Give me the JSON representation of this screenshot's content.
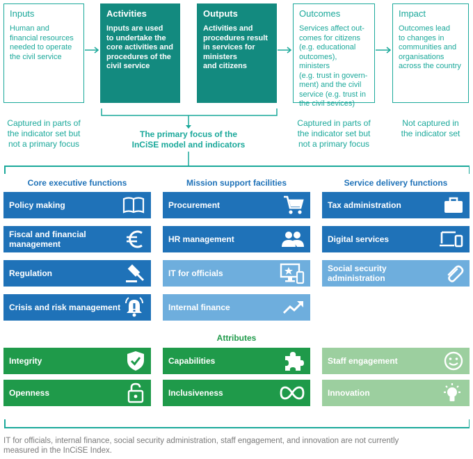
{
  "flow": [
    {
      "title": "Inputs",
      "desc": [
        "Human and",
        "financial resources",
        "needed to operate",
        "the civil service"
      ]
    },
    {
      "title": "Activities",
      "desc": [
        "Inputs are used",
        "to undertake the",
        "core activities and",
        "procedures of the",
        "civil service"
      ]
    },
    {
      "title": "Outputs",
      "desc": [
        "Activities and",
        "procedures result",
        "in services for",
        "ministers",
        "and citizens"
      ]
    },
    {
      "title": "Outcomes",
      "desc": [
        "Services affect out-",
        "comes for citizens",
        "(e.g. educational",
        "outcomes), ministers",
        "(e.g. trust in govern-",
        "ment) and the civil",
        "service (e.g. trust in",
        "the civil sevices)"
      ]
    },
    {
      "title": "Impact",
      "desc": [
        "Outcomes lead",
        "to changes in",
        "communities and",
        "organisations",
        "across the country"
      ]
    }
  ],
  "notes": {
    "inputs": [
      "Captured in parts of",
      "the indicator set but",
      "not a primary focus"
    ],
    "focus": [
      "The primary focus of the",
      "InCiSE model and indicators"
    ],
    "outcomes": [
      "Captured in parts of",
      "the indicator set but",
      "not a primary focus"
    ],
    "impact": [
      "Not captured in",
      "the indicator set"
    ]
  },
  "columns": [
    {
      "heading": "Core executive functions",
      "tiles": [
        {
          "label": "Policy making",
          "icon": "book-icon",
          "shade": "dark"
        },
        {
          "label": "Fiscal and financial management",
          "icon": "euro-icon",
          "shade": "dark"
        },
        {
          "label": "Regulation",
          "icon": "gavel-icon",
          "shade": "dark"
        },
        {
          "label": "Crisis and risk management",
          "icon": "alarm-bell-icon",
          "shade": "dark"
        }
      ]
    },
    {
      "heading": "Mission support facilities",
      "tiles": [
        {
          "label": "Procurement",
          "icon": "cart-icon",
          "shade": "dark"
        },
        {
          "label": "HR management",
          "icon": "people-icon",
          "shade": "dark"
        },
        {
          "label": "IT for officials",
          "icon": "computer-icon",
          "shade": "light"
        },
        {
          "label": "Internal finance",
          "icon": "trend-up-icon",
          "shade": "light"
        }
      ]
    },
    {
      "heading": "Service delivery functions",
      "tiles": [
        {
          "label": "Tax administration",
          "icon": "briefcase-icon",
          "shade": "dark"
        },
        {
          "label": "Digital services",
          "icon": "devices-icon",
          "shade": "dark"
        },
        {
          "label": "Social security administration",
          "icon": "paperclip-icon",
          "shade": "light"
        }
      ]
    }
  ],
  "attributes": {
    "heading": "Attributes",
    "tiles": [
      {
        "label": "Integrity",
        "icon": "shield-check-icon",
        "shade": "dark"
      },
      {
        "label": "Capabilities",
        "icon": "puzzle-icon",
        "shade": "dark"
      },
      {
        "label": "Staff engagement",
        "icon": "smiley-icon",
        "shade": "light"
      },
      {
        "label": "Openness",
        "icon": "padlock-icon",
        "shade": "dark"
      },
      {
        "label": "Inclusiveness",
        "icon": "infinity-icon",
        "shade": "dark"
      },
      {
        "label": "Innovation",
        "icon": "lightbulb-icon",
        "shade": "light"
      }
    ]
  },
  "footnote": [
    "IT for officials, internal finance, social security administration, staff engagement, and innovation are not currently",
    "measured in the InCiSE Index."
  ],
  "colors": {
    "teal": "#1aa89a",
    "dark_teal": "#138a7f",
    "blue": "#1f72b8",
    "light_blue": "#6eaedd",
    "green": "#1f9a4a",
    "light_green": "#9ccf9f"
  }
}
